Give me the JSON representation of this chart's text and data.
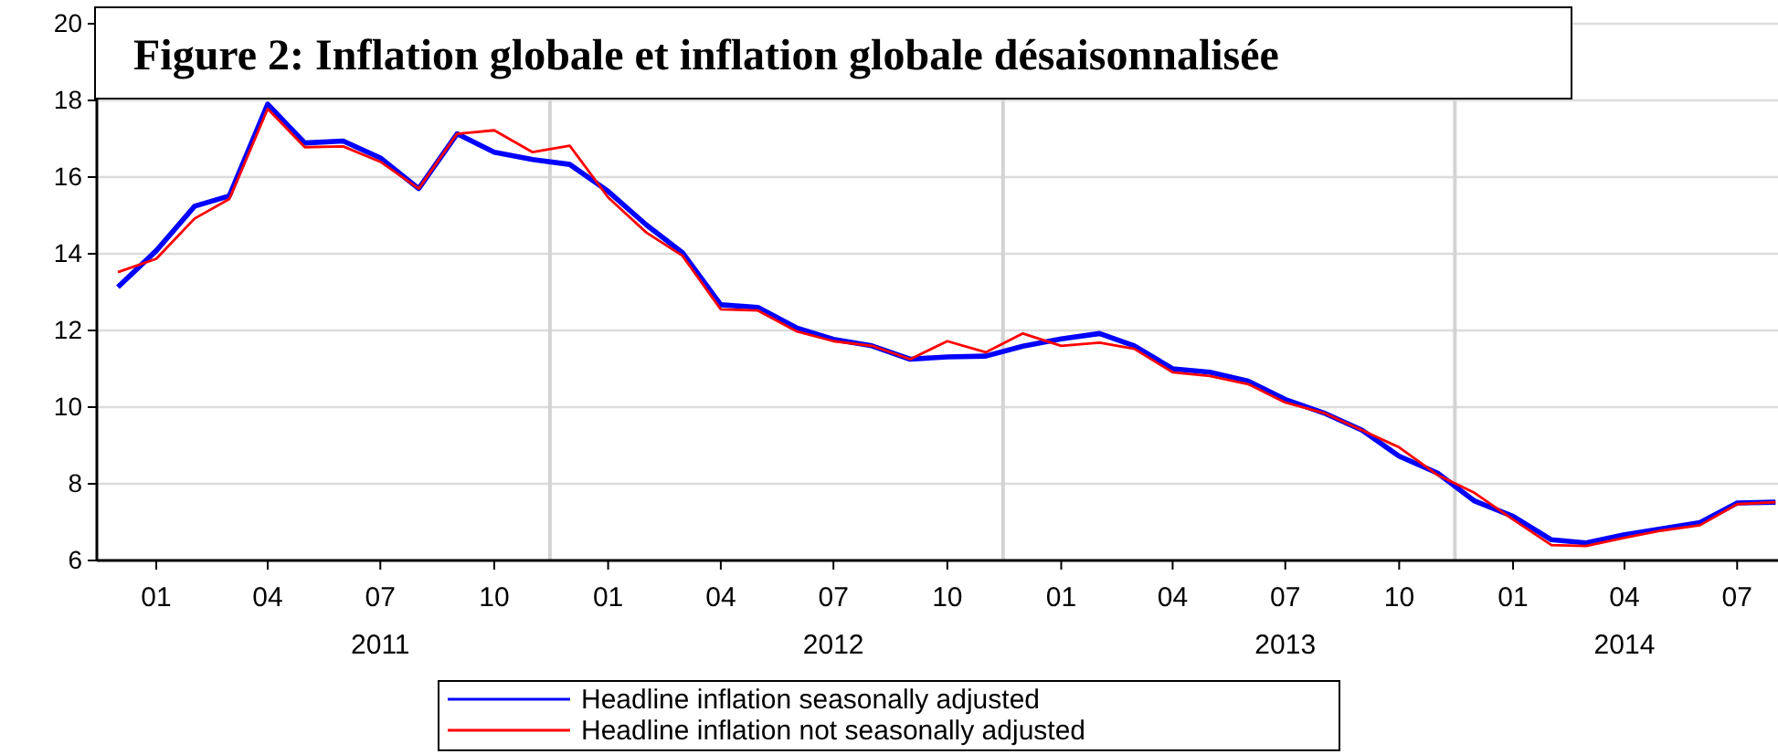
{
  "chart_data": {
    "type": "line",
    "title": "Figure 2: Inflation globale et inflation globale désaisonnalisée",
    "x": [
      "2010-12",
      "2011-01",
      "2011-02",
      "2011-03",
      "2011-04",
      "2011-05",
      "2011-06",
      "2011-07",
      "2011-08",
      "2011-09",
      "2011-10",
      "2011-11",
      "2011-12",
      "2012-01",
      "2012-02",
      "2012-03",
      "2012-04",
      "2012-05",
      "2012-06",
      "2012-07",
      "2012-08",
      "2012-09",
      "2012-10",
      "2012-11",
      "2012-12",
      "2013-01",
      "2013-02",
      "2013-03",
      "2013-04",
      "2013-05",
      "2013-06",
      "2013-07",
      "2013-08",
      "2013-09",
      "2013-10",
      "2013-11",
      "2013-12",
      "2014-01",
      "2014-02",
      "2014-03",
      "2014-04",
      "2014-05",
      "2014-06",
      "2014-07",
      "2014-08"
    ],
    "series": [
      {
        "name": "Headline inflation seasonally adjusted",
        "color": "#0000ff",
        "values": [
          13.13,
          14.08,
          15.24,
          15.51,
          17.9,
          16.89,
          16.94,
          16.5,
          15.7,
          17.13,
          16.65,
          16.46,
          16.33,
          15.63,
          14.75,
          14.03,
          12.67,
          12.6,
          12.07,
          11.77,
          11.6,
          11.25,
          11.31,
          11.33,
          11.59,
          11.78,
          11.92,
          11.6,
          11.0,
          10.91,
          10.68,
          10.2,
          9.85,
          9.4,
          8.72,
          8.28,
          7.55,
          7.15,
          6.54,
          6.46,
          6.67,
          6.83,
          6.99,
          7.5,
          7.52
        ]
      },
      {
        "name": "Headline inflation not seasonally adjusted",
        "color": "#ff0000",
        "values": [
          13.52,
          13.87,
          14.92,
          15.43,
          17.78,
          16.78,
          16.8,
          16.4,
          15.7,
          17.13,
          17.22,
          16.65,
          16.82,
          15.47,
          14.55,
          13.95,
          12.55,
          12.52,
          11.98,
          11.72,
          11.6,
          11.25,
          11.72,
          11.43,
          11.92,
          11.6,
          11.68,
          11.52,
          10.91,
          10.81,
          10.6,
          10.12,
          9.85,
          9.4,
          8.95,
          8.23,
          7.76,
          7.07,
          6.4,
          6.38,
          6.59,
          6.78,
          6.92,
          7.47,
          7.52
        ]
      }
    ],
    "xlim": [
      "2010-11-14",
      "2014-08-03"
    ],
    "xticks": [
      {
        "value": "2011-01",
        "label": "01"
      },
      {
        "value": "2011-04",
        "label": "04"
      },
      {
        "value": "2011-07",
        "label": "07\n2011"
      },
      {
        "value": "2011-10",
        "label": "10"
      },
      {
        "value": "2012-01",
        "label": "01"
      },
      {
        "value": "2012-04",
        "label": "04"
      },
      {
        "value": "2012-07",
        "label": "07\n2012"
      },
      {
        "value": "2012-10",
        "label": "10"
      },
      {
        "value": "2013-01",
        "label": "01"
      },
      {
        "value": "2013-04",
        "label": "04"
      },
      {
        "value": "2013-07",
        "label": "07\n2013"
      },
      {
        "value": "2013-10",
        "label": "10"
      },
      {
        "value": "2014-01",
        "label": "01"
      },
      {
        "value": "2014-04",
        "label": "04\n2014"
      },
      {
        "value": "2014-07",
        "label": "07"
      }
    ],
    "ylim": [
      6,
      20
    ],
    "yticks": [
      6,
      8,
      10,
      12,
      14,
      16,
      18,
      20
    ],
    "ref_lines": [
      {
        "axis": "x",
        "value": "2011-11-15",
        "color": "#d3d3d3"
      },
      {
        "axis": "x",
        "value": "2012-11-15",
        "color": "#d3d3d3"
      },
      {
        "axis": "x",
        "value": "2013-11-15",
        "color": "#d3d3d3"
      }
    ],
    "grid": "y",
    "legend": "bottom",
    "line_style": "solid",
    "marker": "none"
  }
}
